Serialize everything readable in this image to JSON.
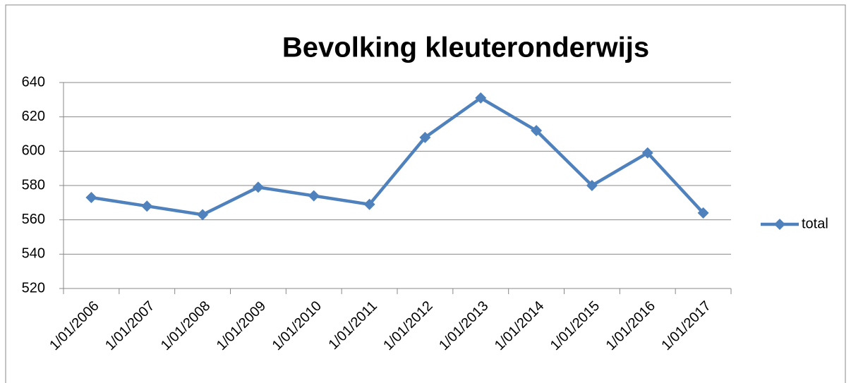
{
  "chart_data": {
    "type": "line",
    "title": "Bevolking kleuteronderwijs",
    "categories": [
      "1/01/2006",
      "1/01/2007",
      "1/01/2008",
      "1/01/2009",
      "1/01/2010",
      "1/01/2011",
      "1/01/2012",
      "1/01/2013",
      "1/01/2014",
      "1/01/2015",
      "1/01/2016",
      "1/01/2017"
    ],
    "series": [
      {
        "name": "total",
        "color": "#4f81bd",
        "values": [
          573,
          568,
          563,
          579,
          574,
          569,
          608,
          631,
          612,
          580,
          599,
          564
        ]
      }
    ],
    "ylim": [
      520,
      640
    ],
    "yticks": [
      520,
      540,
      560,
      580,
      600,
      620,
      640
    ],
    "grid": true,
    "legend": "right"
  }
}
